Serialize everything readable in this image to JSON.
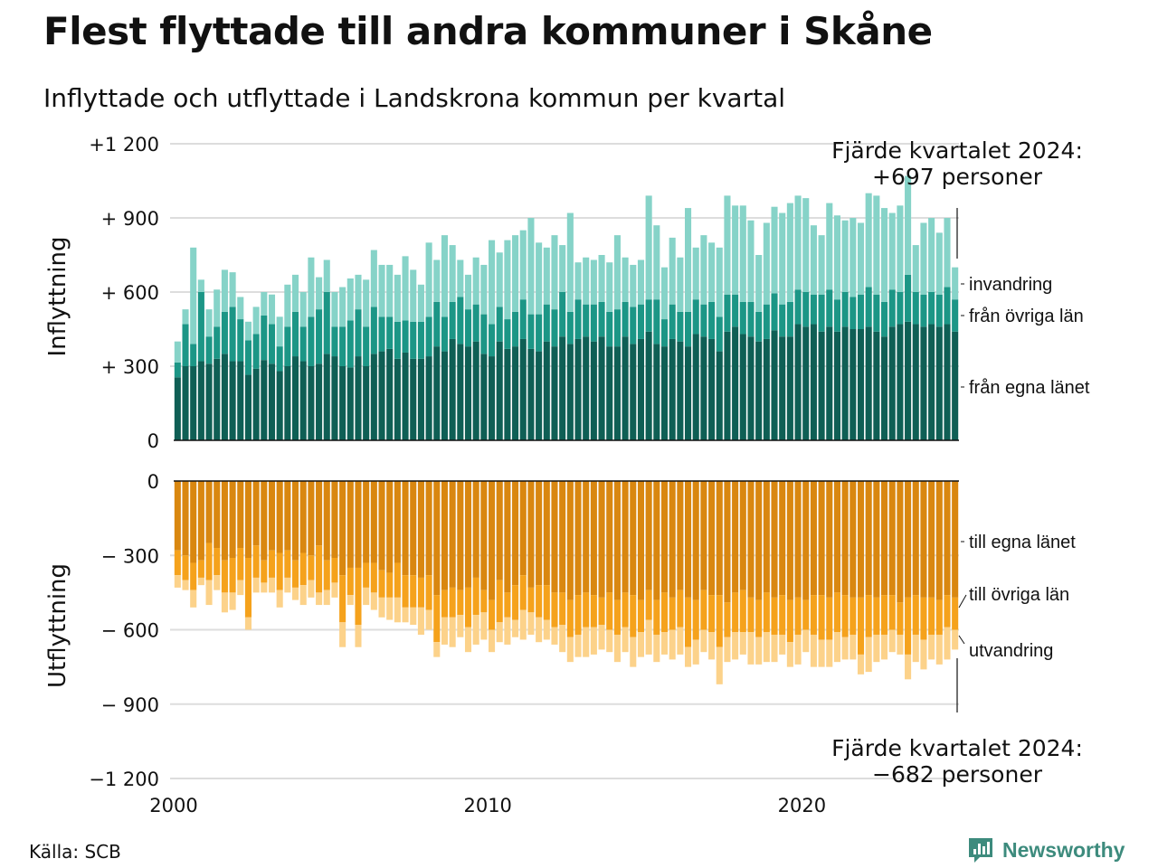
{
  "header": {
    "title": "Flest flyttade till andra kommuner i Skåne",
    "subtitle": "Inflyttade och utflyttade i Landskrona kommun per kvartal"
  },
  "footer": {
    "source": "Källa: SCB",
    "brand": "Newsworthy"
  },
  "chart_data": {
    "type": "bar",
    "x_start": 2000,
    "quarters": 100,
    "x_ticks": [
      "2000",
      "2010",
      "2020"
    ],
    "y_ticks_in": [
      "+1 200",
      "+  900",
      "+  600",
      "+  300",
      "0"
    ],
    "y_ticks_out": [
      "0",
      "−  300",
      "−  600",
      "−  900",
      "−1 200"
    ],
    "ylim_in": [
      0,
      1200
    ],
    "ylim_out": [
      -1200,
      0
    ],
    "ylabel_in": "Inflyttning",
    "ylabel_out": "Utflyttning",
    "annotation_top": {
      "line1": "Fjärde kvartalet 2024:",
      "line2": "+697 personer"
    },
    "annotation_bottom": {
      "line1": "Fjärde kvartalet 2024:",
      "line2": "−682 personer"
    },
    "colors": {
      "in_own": "#0f5f55",
      "in_other": "#1c9686",
      "in_immig": "#86d3c8",
      "out_own": "#d98710",
      "out_other": "#f5a21c",
      "out_emig": "#fcd28a",
      "grid": "#dddddd"
    },
    "series_in": [
      {
        "name": "från egna länet",
        "values": [
          255,
          300,
          300,
          320,
          310,
          330,
          350,
          320,
          320,
          265,
          290,
          325,
          310,
          280,
          300,
          340,
          320,
          300,
          310,
          350,
          340,
          300,
          295,
          340,
          300,
          350,
          360,
          370,
          330,
          355,
          330,
          330,
          340,
          380,
          360,
          410,
          390,
          380,
          400,
          350,
          340,
          400,
          370,
          380,
          410,
          370,
          360,
          400,
          380,
          420,
          390,
          410,
          420,
          400,
          420,
          380,
          380,
          420,
          390,
          410,
          440,
          390,
          380,
          410,
          400,
          380,
          430,
          420,
          410,
          360,
          440,
          460,
          430,
          420,
          400,
          410,
          445,
          420,
          420,
          470,
          460,
          470,
          440,
          460,
          440,
          460,
          450,
          450,
          460,
          440,
          420,
          460,
          470,
          480,
          470,
          460,
          470,
          460,
          470,
          440
        ]
      },
      {
        "name": "från övriga län",
        "values": [
          60,
          170,
          90,
          280,
          110,
          130,
          170,
          220,
          170,
          140,
          140,
          180,
          160,
          100,
          160,
          180,
          140,
          200,
          220,
          250,
          120,
          160,
          190,
          190,
          160,
          190,
          140,
          130,
          150,
          130,
          150,
          150,
          160,
          180,
          140,
          150,
          190,
          150,
          150,
          160,
          130,
          140,
          120,
          140,
          160,
          140,
          150,
          150,
          150,
          180,
          130,
          160,
          130,
          150,
          140,
          140,
          150,
          140,
          150,
          140,
          130,
          180,
          110,
          140,
          120,
          140,
          140,
          130,
          150,
          140,
          150,
          130,
          130,
          140,
          120,
          140,
          150,
          130,
          140,
          140,
          140,
          120,
          150,
          150,
          130,
          140,
          130,
          140,
          160,
          150,
          140,
          150,
          130,
          190,
          130,
          130,
          130,
          130,
          150,
          130
        ]
      },
      {
        "name": "invandring",
        "values": [
          85,
          60,
          390,
          50,
          110,
          150,
          170,
          140,
          90,
          75,
          110,
          95,
          120,
          120,
          170,
          150,
          140,
          240,
          130,
          130,
          140,
          160,
          170,
          140,
          190,
          230,
          210,
          210,
          190,
          260,
          210,
          150,
          300,
          170,
          330,
          230,
          150,
          140,
          190,
          200,
          340,
          220,
          320,
          310,
          280,
          390,
          290,
          230,
          300,
          190,
          400,
          150,
          190,
          180,
          190,
          200,
          300,
          180,
          170,
          180,
          420,
          300,
          210,
          270,
          220,
          420,
          210,
          280,
          240,
          280,
          400,
          360,
          390,
          330,
          230,
          330,
          350,
          370,
          400,
          380,
          380,
          280,
          240,
          350,
          340,
          290,
          320,
          290,
          380,
          400,
          380,
          310,
          350,
          400,
          190,
          290,
          300,
          250,
          280,
          130
        ]
      }
    ],
    "series_out": [
      {
        "name": "till egna länet",
        "values": [
          -280,
          -300,
          -330,
          -320,
          -250,
          -270,
          -320,
          -310,
          -270,
          -310,
          -260,
          -320,
          -280,
          -290,
          -280,
          -320,
          -290,
          -300,
          -260,
          -320,
          -310,
          -380,
          -350,
          -350,
          -330,
          -330,
          -360,
          -370,
          -330,
          -380,
          -380,
          -390,
          -380,
          -460,
          -440,
          -430,
          -440,
          -430,
          -390,
          -440,
          -480,
          -400,
          -450,
          -420,
          -380,
          -430,
          -420,
          -420,
          -450,
          -450,
          -480,
          -460,
          -450,
          -460,
          -470,
          -450,
          -480,
          -450,
          -460,
          -480,
          -440,
          -480,
          -450,
          -470,
          -440,
          -470,
          -480,
          -440,
          -460,
          -460,
          -490,
          -450,
          -440,
          -470,
          -480,
          -450,
          -470,
          -460,
          -480,
          -470,
          -480,
          -460,
          -460,
          -470,
          -450,
          -460,
          -470,
          -470,
          -460,
          -470,
          -460,
          -460,
          -490,
          -470,
          -460,
          -470,
          -470,
          -480,
          -460,
          -470
        ]
      },
      {
        "name": "till övriga län",
        "values": [
          -100,
          -100,
          -110,
          -70,
          -150,
          -110,
          -130,
          -140,
          -130,
          -240,
          -130,
          -90,
          -110,
          -150,
          -110,
          -110,
          -130,
          -100,
          -190,
          -120,
          -100,
          -190,
          -110,
          -230,
          -100,
          -120,
          -110,
          -100,
          -140,
          -130,
          -130,
          -120,
          -140,
          -190,
          -110,
          -120,
          -100,
          -160,
          -150,
          -90,
          -120,
          -170,
          -100,
          -140,
          -140,
          -100,
          -130,
          -140,
          -140,
          -130,
          -150,
          -160,
          -140,
          -130,
          -110,
          -150,
          -140,
          -140,
          -170,
          -130,
          -120,
          -140,
          -160,
          -130,
          -150,
          -200,
          -160,
          -160,
          -150,
          -210,
          -140,
          -160,
          -170,
          -140,
          -150,
          -160,
          -150,
          -160,
          -170,
          -150,
          -120,
          -160,
          -180,
          -170,
          -160,
          -170,
          -150,
          -230,
          -170,
          -150,
          -160,
          -140,
          -130,
          -230,
          -160,
          -170,
          -150,
          -140,
          -130,
          -130
        ]
      },
      {
        "name": "utvandring",
        "values": [
          -50,
          -40,
          -70,
          -30,
          -100,
          -60,
          -80,
          -70,
          -60,
          -50,
          -60,
          -40,
          -60,
          -70,
          -60,
          -50,
          -80,
          -70,
          -50,
          -60,
          -60,
          -100,
          -40,
          -90,
          -70,
          -70,
          -80,
          -90,
          -100,
          -60,
          -70,
          -110,
          -80,
          -60,
          -110,
          -120,
          -90,
          -100,
          -120,
          -110,
          -90,
          -80,
          -110,
          -70,
          -120,
          -90,
          -100,
          -80,
          -70,
          -110,
          -100,
          -90,
          -120,
          -110,
          -100,
          -90,
          -110,
          -100,
          -120,
          -100,
          -140,
          -110,
          -90,
          -120,
          -110,
          -80,
          -100,
          -90,
          -110,
          -150,
          -100,
          -110,
          -90,
          -130,
          -110,
          -120,
          -110,
          -80,
          -100,
          -120,
          -90,
          -130,
          -110,
          -110,
          -120,
          -90,
          -100,
          -80,
          -140,
          -110,
          -100,
          -90,
          -80,
          -100,
          -110,
          -120,
          -100,
          -120,
          -130,
          -80
        ]
      }
    ]
  }
}
